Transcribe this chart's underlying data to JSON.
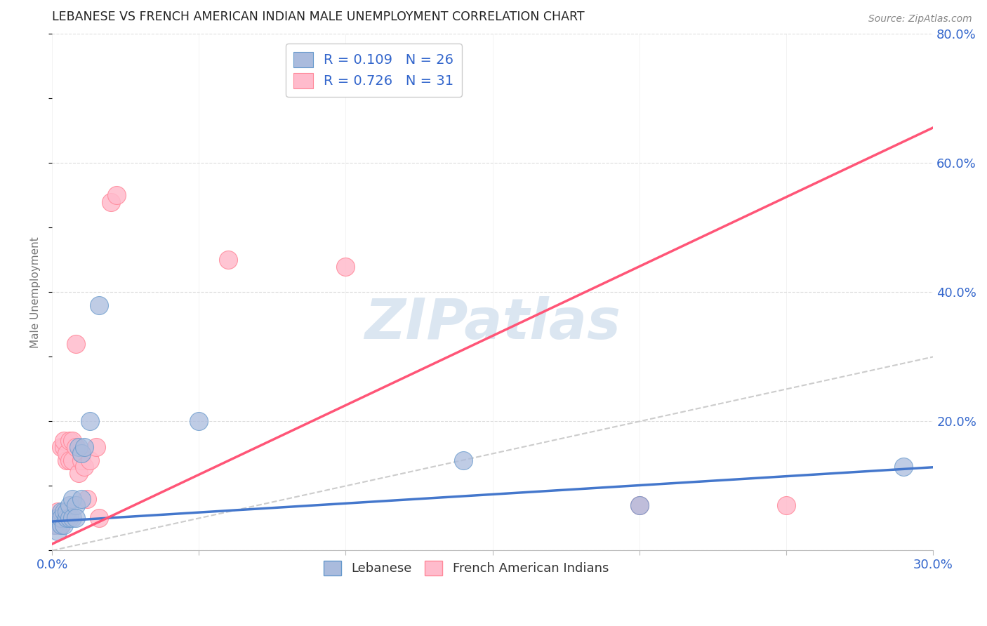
{
  "title": "LEBANESE VS FRENCH AMERICAN INDIAN MALE UNEMPLOYMENT CORRELATION CHART",
  "source": "Source: ZipAtlas.com",
  "ylabel": "Male Unemployment",
  "xlim": [
    0.0,
    0.3
  ],
  "ylim": [
    0.0,
    0.8
  ],
  "xticks": [
    0.0,
    0.05,
    0.1,
    0.15,
    0.2,
    0.25,
    0.3
  ],
  "yticks": [
    0.0,
    0.2,
    0.4,
    0.6,
    0.8
  ],
  "ytick_labels_right": [
    "",
    "20.0%",
    "40.0%",
    "60.0%",
    "80.0%"
  ],
  "xtick_labels": [
    "0.0%",
    "",
    "",
    "",
    "",
    "",
    "30.0%"
  ],
  "blue_scatter_color": "#AABBDD",
  "blue_edge_color": "#6699CC",
  "pink_scatter_color": "#FFBBCC",
  "pink_edge_color": "#FF8899",
  "trend_blue_color": "#4477CC",
  "trend_pink_color": "#FF5577",
  "diag_color": "#CCCCCC",
  "background": "#FFFFFF",
  "grid_color": "#DDDDDD",
  "watermark_color": "#D8E4F0",
  "watermark": "ZIPatlas",
  "lebanese_x": [
    0.001,
    0.002,
    0.002,
    0.003,
    0.003,
    0.003,
    0.004,
    0.004,
    0.005,
    0.005,
    0.006,
    0.006,
    0.007,
    0.007,
    0.008,
    0.008,
    0.009,
    0.01,
    0.01,
    0.011,
    0.013,
    0.016,
    0.05,
    0.14,
    0.2,
    0.29
  ],
  "lebanese_y": [
    0.04,
    0.05,
    0.03,
    0.04,
    0.06,
    0.05,
    0.04,
    0.06,
    0.05,
    0.06,
    0.05,
    0.07,
    0.05,
    0.08,
    0.07,
    0.05,
    0.16,
    0.15,
    0.08,
    0.16,
    0.2,
    0.38,
    0.2,
    0.14,
    0.07,
    0.13
  ],
  "french_ai_x": [
    0.001,
    0.001,
    0.002,
    0.002,
    0.003,
    0.003,
    0.003,
    0.004,
    0.004,
    0.005,
    0.005,
    0.006,
    0.006,
    0.007,
    0.007,
    0.008,
    0.008,
    0.009,
    0.01,
    0.01,
    0.011,
    0.012,
    0.013,
    0.015,
    0.016,
    0.02,
    0.022,
    0.06,
    0.1,
    0.2,
    0.25
  ],
  "french_ai_y": [
    0.04,
    0.05,
    0.06,
    0.04,
    0.04,
    0.05,
    0.16,
    0.16,
    0.17,
    0.14,
    0.15,
    0.17,
    0.14,
    0.17,
    0.14,
    0.16,
    0.32,
    0.12,
    0.14,
    0.15,
    0.13,
    0.08,
    0.14,
    0.16,
    0.05,
    0.54,
    0.55,
    0.45,
    0.44,
    0.07,
    0.07
  ],
  "trend_blue_intercept": 0.045,
  "trend_blue_slope": 0.28,
  "trend_pink_intercept": 0.01,
  "trend_pink_slope": 2.15
}
